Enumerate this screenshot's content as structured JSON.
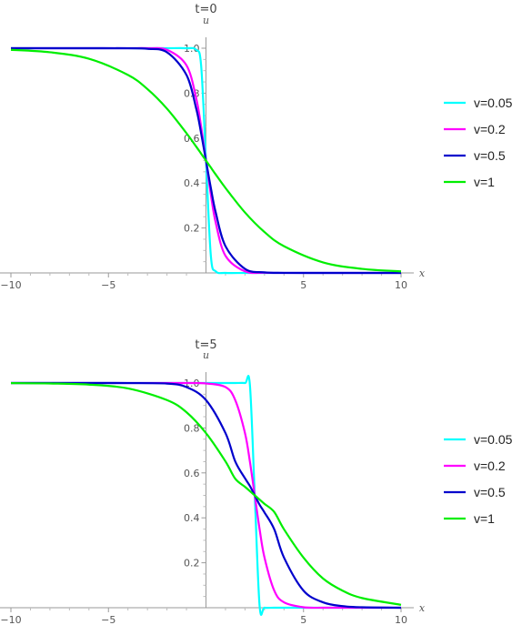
{
  "chart_data": [
    {
      "type": "line",
      "title": "t=0",
      "xlabel": "x",
      "ylabel": "u",
      "xlim": [
        -10,
        10
      ],
      "ylim": [
        0,
        1.0
      ],
      "x_ticks": [
        -10,
        -5,
        5,
        10
      ],
      "x_tick_labels": [
        "−10",
        "−5",
        "5",
        "10"
      ],
      "y_ticks": [
        0.2,
        0.4,
        0.6,
        0.8,
        1.0
      ],
      "y_tick_labels": [
        "0.2",
        "0.4",
        "0.6",
        "0.8",
        "1.0"
      ],
      "grid": false,
      "legend_position": "right",
      "x": [
        -10,
        -8,
        -6,
        -4,
        -3,
        -2,
        -1,
        -0.5,
        -0.25,
        0,
        0.25,
        0.5,
        1,
        2,
        3,
        4,
        6,
        8,
        10
      ],
      "series": [
        {
          "name": "v=0.05",
          "color": "#00ffff",
          "values": [
            1.0,
            1.0,
            1.0,
            1.0,
            1.0,
            1.0,
            1.0,
            0.993,
            0.924,
            0.5,
            0.076,
            0.007,
            0.0,
            0.0,
            0.0,
            0.0,
            0.0,
            0.0,
            0.0
          ]
        },
        {
          "name": "v=0.2",
          "color": "#ff00ff",
          "values": [
            1.0,
            1.0,
            1.0,
            1.0,
            1.0,
            0.993,
            0.924,
            0.777,
            0.651,
            0.5,
            0.349,
            0.223,
            0.076,
            0.007,
            0.001,
            0.0,
            0.0,
            0.0,
            0.0
          ]
        },
        {
          "name": "v=0.5",
          "color": "#0000cc",
          "values": [
            1.0,
            1.0,
            1.0,
            0.9997,
            0.9975,
            0.982,
            0.881,
            0.731,
            0.622,
            0.5,
            0.378,
            0.269,
            0.119,
            0.018,
            0.0025,
            0.0003,
            0.0,
            0.0,
            0.0
          ]
        },
        {
          "name": "v=1",
          "color": "#00ee00",
          "values": [
            0.993,
            0.982,
            0.953,
            0.881,
            0.818,
            0.731,
            0.622,
            0.562,
            0.531,
            0.5,
            0.469,
            0.438,
            0.378,
            0.269,
            0.182,
            0.119,
            0.047,
            0.018,
            0.007
          ]
        }
      ]
    },
    {
      "type": "line",
      "title": "t=5",
      "xlabel": "x",
      "ylabel": "u",
      "xlim": [
        -10,
        10
      ],
      "ylim": [
        0,
        1.0
      ],
      "x_ticks": [
        -10,
        -5,
        5,
        10
      ],
      "x_tick_labels": [
        "−10",
        "−5",
        "5",
        "10"
      ],
      "y_ticks": [
        0.2,
        0.4,
        0.6,
        0.8,
        1.0
      ],
      "y_tick_labels": [
        "0.2",
        "0.4",
        "0.6",
        "0.8",
        "1.0"
      ],
      "grid": false,
      "legend_position": "right",
      "x": [
        -10,
        -8,
        -6,
        -4,
        -2,
        -1,
        0,
        1,
        1.5,
        2,
        2.25,
        2.5,
        2.75,
        3,
        3.5,
        4,
        5,
        6,
        7,
        8,
        10
      ],
      "series": [
        {
          "name": "v=0.05",
          "color": "#00ffff",
          "values": [
            1.0,
            1.0,
            1.0,
            1.0,
            1.0,
            1.0,
            1.0,
            1.0,
            1.0,
            1.0,
            0.993,
            0.5,
            0.007,
            0.0,
            0.0,
            0.0,
            0.0,
            0.0,
            0.0,
            0.0,
            0.0
          ]
        },
        {
          "name": "v=0.2",
          "color": "#ff00ff",
          "values": [
            1.0,
            1.0,
            1.0,
            1.0,
            1.0,
            1.0,
            0.998,
            0.982,
            0.924,
            0.777,
            0.651,
            0.5,
            0.349,
            0.223,
            0.076,
            0.024,
            0.002,
            0.0,
            0.0,
            0.0,
            0.0
          ]
        },
        {
          "name": "v=0.5",
          "color": "#0000cc",
          "values": [
            1.0,
            1.0,
            1.0,
            0.9998,
            0.9975,
            0.982,
            0.924,
            0.777,
            0.651,
            0.576,
            0.542,
            0.5,
            0.458,
            0.424,
            0.349,
            0.223,
            0.076,
            0.024,
            0.007,
            0.002,
            0.0
          ]
        },
        {
          "name": "v=1",
          "color": "#00ee00",
          "values": [
            0.9995,
            0.998,
            0.993,
            0.976,
            0.924,
            0.87,
            0.777,
            0.651,
            0.574,
            0.538,
            0.519,
            0.5,
            0.481,
            0.462,
            0.426,
            0.349,
            0.223,
            0.13,
            0.076,
            0.043,
            0.013
          ]
        }
      ]
    }
  ]
}
